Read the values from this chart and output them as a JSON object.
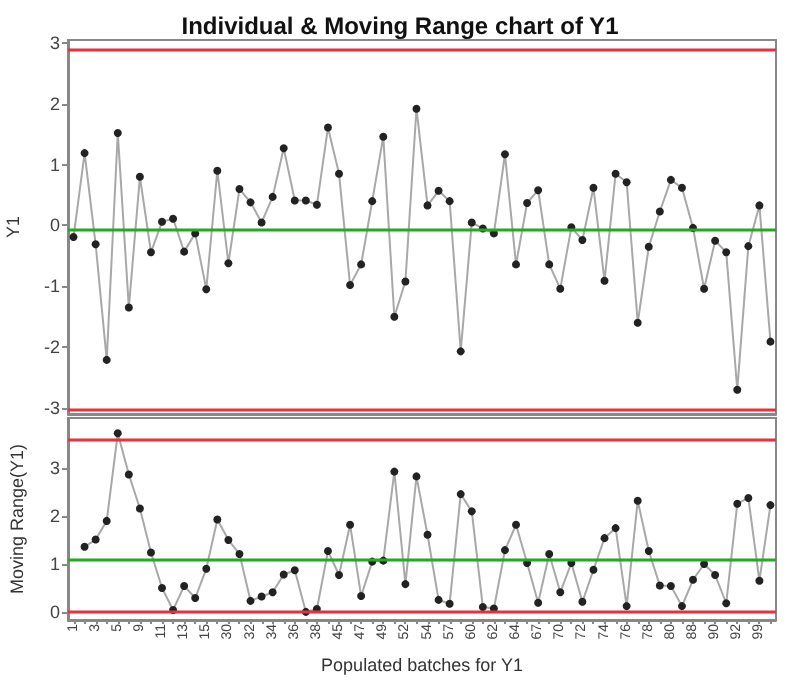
{
  "chart_data": [
    {
      "type": "line",
      "title": "Individual & Moving Range chart of Y1",
      "ylabel": "Y1",
      "tick_labels": "y",
      "marker": "circle",
      "line_style": "solid",
      "categories": [
        "1",
        null,
        "3",
        null,
        "5",
        null,
        "9",
        null,
        "11",
        null,
        "13",
        null,
        "15",
        null,
        "30",
        null,
        "32",
        null,
        "34",
        null,
        "36",
        null,
        "38",
        null,
        "45",
        null,
        "47",
        null,
        "49",
        null,
        "52",
        null,
        "54",
        null,
        "57",
        null,
        "60",
        null,
        "62",
        null,
        "64",
        null,
        "67",
        null,
        "70",
        null,
        "72",
        null,
        "74",
        null,
        "76",
        null,
        "78",
        null,
        "80",
        null,
        "88",
        null,
        "90",
        null,
        "92",
        null,
        "99",
        null
      ],
      "ylim": [
        -3.1,
        3.05
      ],
      "yticks": [
        -3,
        -2,
        -1,
        0,
        1,
        2,
        3
      ],
      "series": [
        {
          "color": "#222222",
          "values": [
            -0.19,
            1.19,
            -0.31,
            -2.21,
            1.52,
            -1.35,
            0.8,
            -0.44,
            0.06,
            0.11,
            -0.43,
            -0.13,
            -1.05,
            0.9,
            -0.62,
            0.6,
            0.38,
            0.05,
            0.47,
            1.27,
            0.41,
            0.41,
            0.34,
            1.61,
            0.85,
            -0.98,
            -0.64,
            0.4,
            1.46,
            -1.5,
            -0.92,
            1.92,
            0.33,
            0.57,
            0.4,
            -2.07,
            0.05,
            -0.05,
            -0.13,
            1.17,
            -0.64,
            0.37,
            0.58,
            -0.64,
            -1.04,
            -0.03,
            -0.24,
            0.62,
            -0.91,
            0.85,
            0.71,
            -1.6,
            -0.35,
            0.23,
            0.75,
            0.62,
            -0.04,
            -1.04,
            -0.25,
            -0.44,
            -2.7,
            -0.34,
            0.33,
            -1.91
          ]
        }
      ],
      "ref_lines": [
        {
          "axis": "y",
          "value": 2.89,
          "color": "#e8313d"
        },
        {
          "axis": "y",
          "value": -0.06,
          "color": "#22aa22"
        },
        {
          "axis": "y",
          "value": -3.03,
          "color": "#e8313d"
        }
      ]
    },
    {
      "type": "line",
      "ylabel": "Moving Range(Y1)",
      "xlabel": "Populated batches for Y1",
      "marker": "circle",
      "line_style": "solid",
      "categories": [
        "1",
        null,
        "3",
        null,
        "5",
        null,
        "9",
        null,
        "11",
        null,
        "13",
        null,
        "15",
        null,
        "30",
        null,
        "32",
        null,
        "34",
        null,
        "36",
        null,
        "38",
        null,
        "45",
        null,
        "47",
        null,
        "49",
        null,
        "52",
        null,
        "54",
        null,
        "57",
        null,
        "60",
        null,
        "62",
        null,
        "64",
        null,
        "67",
        null,
        "70",
        null,
        "72",
        null,
        "74",
        null,
        "76",
        null,
        "78",
        null,
        "80",
        null,
        "88",
        null,
        "90",
        null,
        "92",
        null,
        "99",
        null
      ],
      "ylim": [
        -0.17,
        4.05
      ],
      "yticks": [
        0,
        1,
        2,
        3
      ],
      "series": [
        {
          "color": "#222222",
          "values": [
            null,
            1.36,
            1.51,
            1.9,
            3.73,
            2.87,
            2.16,
            1.24,
            0.5,
            0.04,
            0.54,
            0.29,
            0.9,
            1.93,
            1.5,
            1.21,
            0.23,
            0.32,
            0.41,
            0.78,
            0.87,
            0.0,
            0.06,
            1.27,
            0.77,
            1.82,
            0.33,
            1.05,
            1.07,
            2.93,
            0.58,
            2.83,
            1.61,
            0.25,
            0.17,
            2.46,
            2.1,
            0.1,
            0.07,
            1.29,
            1.82,
            1.02,
            0.19,
            1.21,
            0.41,
            1.02,
            0.21,
            0.88,
            1.54,
            1.75,
            0.12,
            2.32,
            1.27,
            0.55,
            0.54,
            0.12,
            0.67,
            1.0,
            0.77,
            0.18,
            2.26,
            2.38,
            0.65,
            2.23
          ]
        }
      ],
      "ref_lines": [
        {
          "axis": "y",
          "value": 3.6,
          "color": "#e8313d"
        },
        {
          "axis": "y",
          "value": 1.09,
          "color": "#22aa22"
        },
        {
          "axis": "y",
          "value": 0,
          "color": "#e8313d"
        }
      ]
    }
  ]
}
